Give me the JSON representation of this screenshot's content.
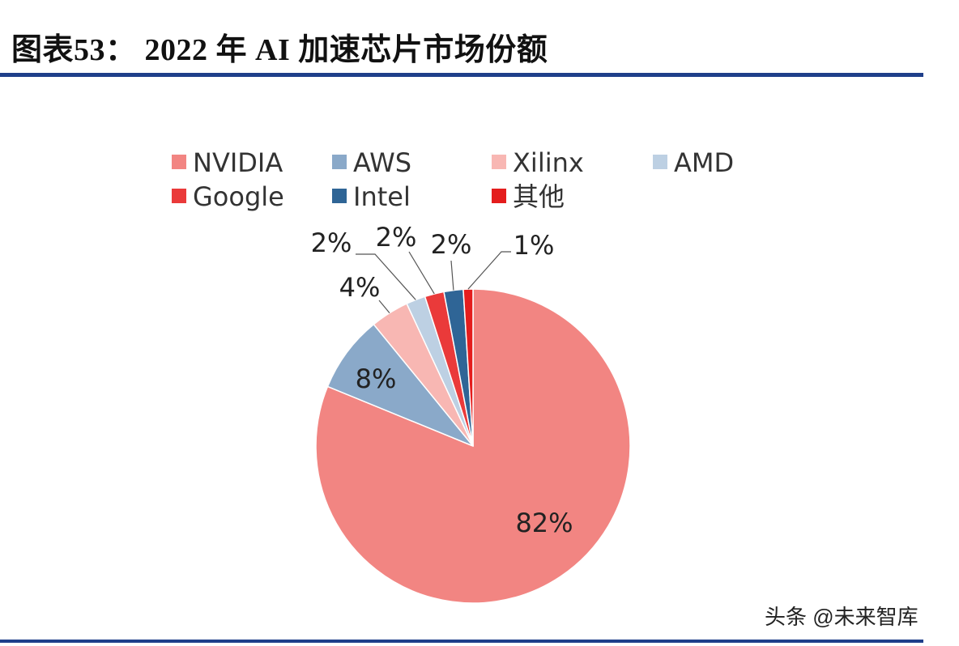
{
  "chart_data": {
    "type": "pie",
    "title": "图表53：   2022 年 AI 加速芯片市场份额",
    "labels": [
      "NVIDIA",
      "AWS",
      "Xilinx",
      "AMD",
      "Google",
      "Intel",
      "其他"
    ],
    "values": [
      82,
      8,
      4,
      2,
      2,
      2,
      1
    ],
    "value_labels": [
      "82%",
      "8%",
      "4%",
      "2%",
      "2%",
      "2%",
      "1%"
    ],
    "colors": [
      "#f28582",
      "#8aa9c9",
      "#f8b7b3",
      "#bdd0e3",
      "#ea3a3a",
      "#2f6596",
      "#e41d1d"
    ],
    "start_angle": "12 o'clock",
    "direction": "clockwise",
    "legend_position": "top"
  },
  "watermark": "头条 @未来智库"
}
